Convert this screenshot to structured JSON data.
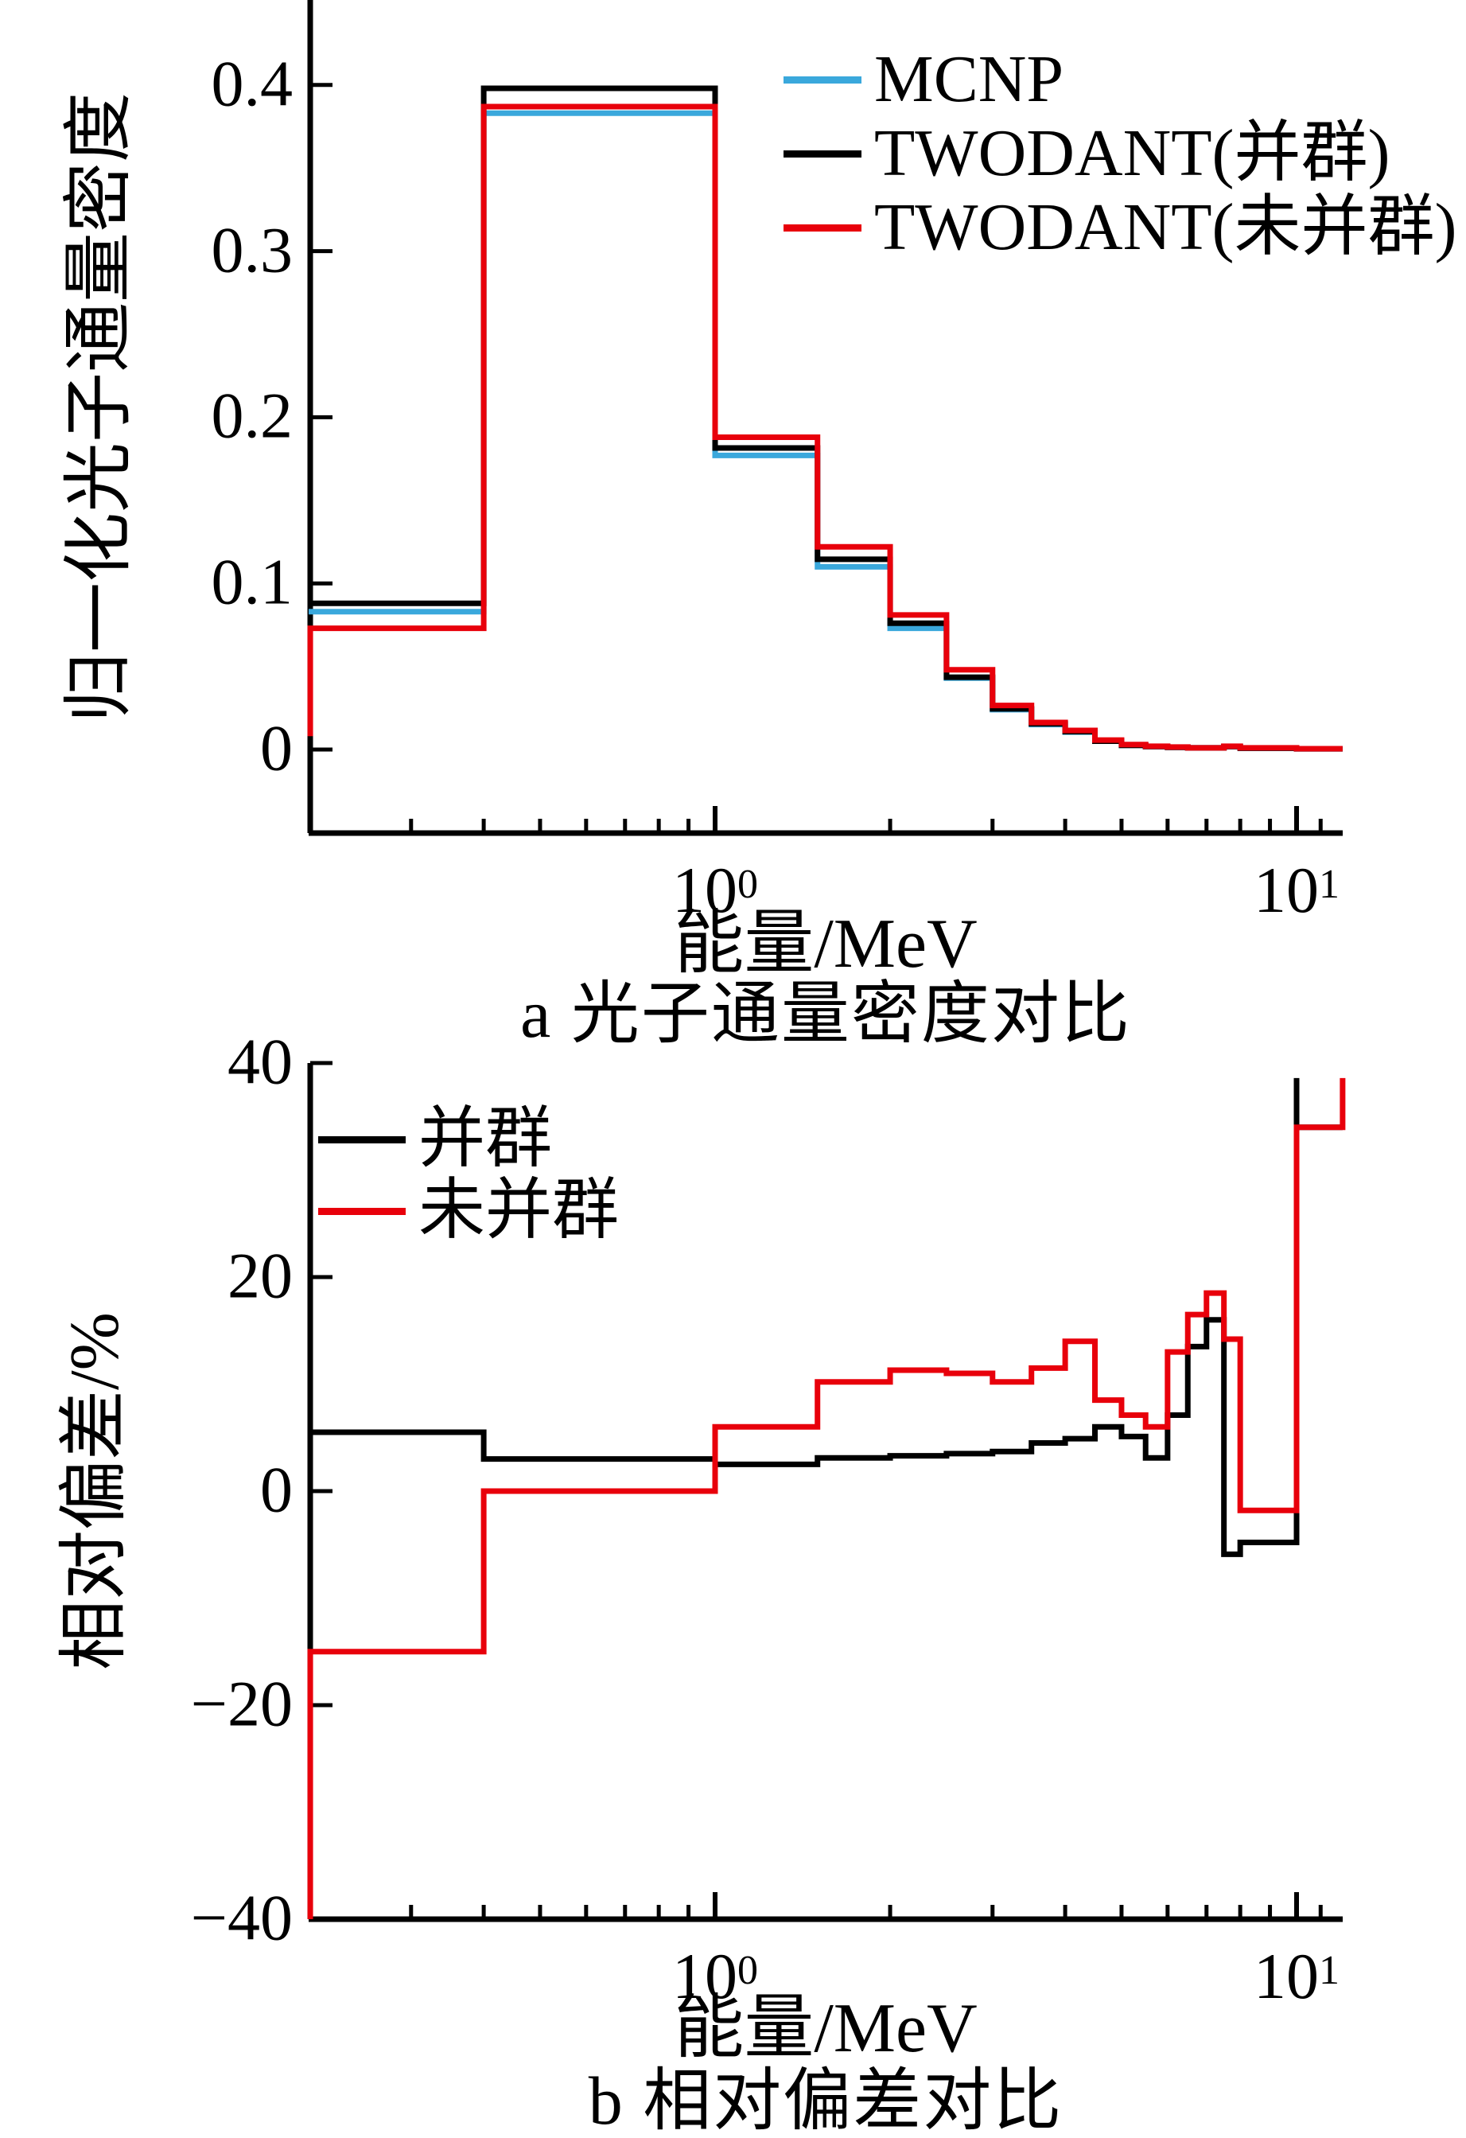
{
  "colors": {
    "background": "#ffffff",
    "axis": "#000000",
    "mcnp_blue": "#3aa8dc",
    "twodant_black": "#000000",
    "twodant_red": "#e8000b"
  },
  "chart_data": [
    {
      "type": "step-line",
      "caption": "a 光子通量密度对比",
      "xlabel": "能量/MeV",
      "ylabel": "归一化光子通量密度",
      "x_scale": "log",
      "xlim": [
        0.2,
        12
      ],
      "ylim": [
        -0.046,
        0.451
      ],
      "x_major_ticks": [
        {
          "value": 1,
          "base": "10",
          "exp": "0"
        },
        {
          "value": 10,
          "base": "10",
          "exp": "1"
        }
      ],
      "x_minor_ticks": [
        0.3,
        0.4,
        0.5,
        0.6,
        0.7,
        0.8,
        0.9,
        2,
        3,
        4,
        5,
        6,
        7,
        8,
        9,
        11
      ],
      "y_ticks": [
        {
          "value": 0,
          "label": "0"
        },
        {
          "value": 0.1,
          "label": "0.1"
        },
        {
          "value": 0.2,
          "label": "0.2"
        },
        {
          "value": 0.3,
          "label": "0.3"
        },
        {
          "value": 0.4,
          "label": "0.4"
        }
      ],
      "boundaries": [
        0.2,
        0.4,
        1.0,
        1.5,
        2.0,
        2.5,
        3.0,
        3.5,
        4.0,
        4.5,
        5.0,
        5.5,
        6.0,
        6.5,
        7.0,
        7.5,
        8.0,
        10.0,
        12.0
      ],
      "series": [
        {
          "name": "MCNP",
          "color": "#3aa8dc",
          "values": [
            0.083,
            0.383,
            0.177,
            0.11,
            0.073,
            0.043,
            0.024,
            0.015,
            0.0105,
            0.005,
            0.0025,
            0.0018,
            0.0013,
            0.001,
            0.001,
            0.0018,
            0.0008,
            0.0004
          ]
        },
        {
          "name": "TWODANT(并群)",
          "color": "#000000",
          "values": [
            0.088,
            0.398,
            0.1815,
            0.1145,
            0.076,
            0.0435,
            0.0245,
            0.0155,
            0.0108,
            0.005,
            0.0025,
            0.0018,
            0.0013,
            0.001,
            0.001,
            0.0018,
            0.0008,
            0.0004
          ]
        },
        {
          "name": "TWODANT(未并群)",
          "color": "#e8000b",
          "start_value": 0.008,
          "values": [
            0.073,
            0.387,
            0.188,
            0.122,
            0.081,
            0.048,
            0.0265,
            0.0163,
            0.0115,
            0.0057,
            0.003,
            0.002,
            0.0015,
            0.001,
            0.001,
            0.002,
            0.001,
            0.0005
          ]
        }
      ],
      "legend_position": "upper-right"
    },
    {
      "type": "step-line",
      "caption": "b 相对偏差对比",
      "xlabel": "能量/MeV",
      "ylabel": "相对偏差/%",
      "x_scale": "log",
      "xlim": [
        0.2,
        12
      ],
      "ylim": [
        -40,
        40
      ],
      "x_major_ticks": [
        {
          "value": 1,
          "base": "10",
          "exp": "0"
        },
        {
          "value": 10,
          "base": "10",
          "exp": "1"
        }
      ],
      "x_minor_ticks": [
        0.3,
        0.4,
        0.5,
        0.6,
        0.7,
        0.8,
        0.9,
        2,
        3,
        4,
        5,
        6,
        7,
        8,
        9,
        11
      ],
      "y_ticks": [
        {
          "value": 40,
          "label": "40"
        },
        {
          "value": 20,
          "label": "20"
        },
        {
          "value": 0,
          "label": "0"
        },
        {
          "value": -20,
          "label": "−20"
        },
        {
          "value": -40,
          "label": "−40"
        }
      ],
      "boundaries": [
        0.2,
        0.4,
        1.0,
        1.5,
        2.0,
        2.5,
        3.0,
        3.5,
        4.0,
        4.5,
        5.0,
        5.5,
        6.0,
        6.5,
        7.0,
        7.5,
        8.0,
        10.0,
        12.0
      ],
      "series": [
        {
          "name": "并群",
          "color": "#000000",
          "values": [
            5.5,
            3.0,
            2.5,
            3.1,
            3.3,
            3.5,
            3.7,
            4.5,
            4.9,
            6.0,
            5.1,
            3.1,
            7.1,
            13.5,
            16.0,
            -5.9,
            -4.8,
            34
          ],
          "overshoot": {
            "boundary": 10,
            "top": 38.6
          }
        },
        {
          "name": "未并群",
          "color": "#e8000b",
          "start_value": -40,
          "values": [
            -15,
            0,
            6.0,
            10.2,
            11.3,
            11.0,
            10.2,
            11.5,
            14.0,
            8.5,
            7.1,
            6.0,
            13.0,
            16.5,
            18.5,
            14.2,
            -1.8,
            34
          ],
          "end_spike": 38.6
        }
      ],
      "legend_position": "upper-left"
    }
  ]
}
